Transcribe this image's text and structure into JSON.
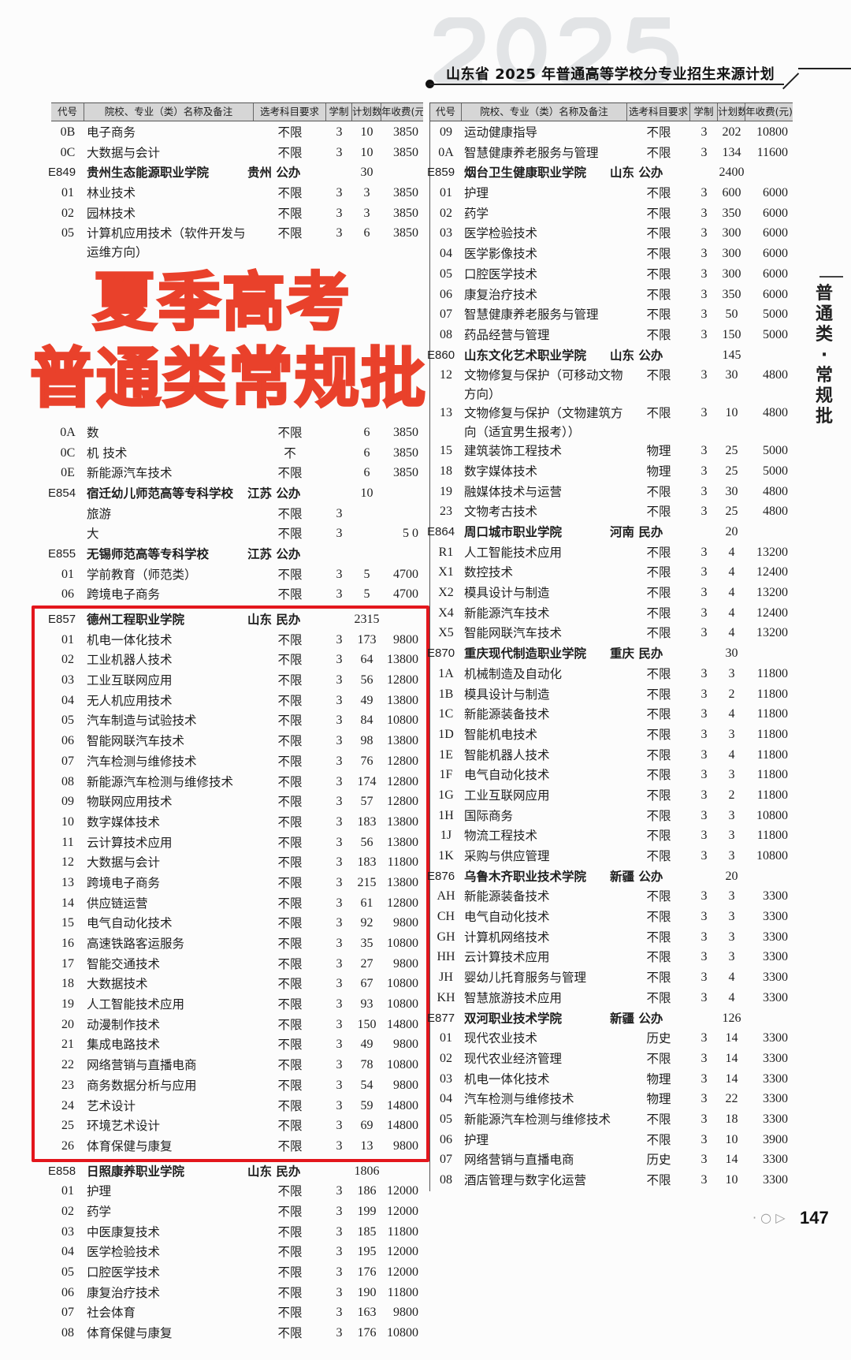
{
  "header": {
    "year_watermark": "2025",
    "title": "山东省 2025 年普通高等学校分专业招生来源计划"
  },
  "table_headers": [
    "代号",
    "院校、专业（类）名称及备注",
    "选考科目要求",
    "学制",
    "计划数",
    "年收费(元)"
  ],
  "left_column": [
    {
      "code": "0B",
      "name": "电子商务",
      "subject": "不限",
      "years": "3",
      "plan": "10",
      "fee": "3850"
    },
    {
      "code": "0C",
      "name": "大数据与会计",
      "subject": "不限",
      "years": "3",
      "plan": "10",
      "fee": "3850"
    },
    {
      "type": "school",
      "code": "E849",
      "name": "贵州生态能源职业学院",
      "region": "贵州  公办",
      "plan": "30"
    },
    {
      "code": "01",
      "name": "林业技术",
      "subject": "不限",
      "years": "3",
      "plan": "3",
      "fee": "3850"
    },
    {
      "code": "02",
      "name": "园林技术",
      "subject": "不限",
      "years": "3",
      "plan": "3",
      "fee": "3850"
    },
    {
      "code": "05",
      "name": "计算机应用技术（软件开发与运维方向）",
      "subject": "不限",
      "years": "3",
      "plan": "6",
      "fee": "3850"
    },
    {
      "code": "0A",
      "name": "数",
      "subject": "不限",
      "years": "",
      "plan": "6",
      "fee": "3850"
    },
    {
      "code": "0C",
      "name": "机    技术",
      "subject": "不",
      "years": "",
      "plan": "6",
      "fee": "3850"
    },
    {
      "code": "0E",
      "name": "新能源汽车技术",
      "subject": "不限",
      "years": "",
      "plan": "6",
      "fee": "3850"
    },
    {
      "type": "school",
      "code": "E854",
      "name": "宿迁幼儿师范高等专科学校",
      "region": "江苏  公办",
      "plan": "10"
    },
    {
      "code": "",
      "name": "旅游",
      "subject": "不限",
      "years": "3",
      "plan": "",
      "fee": ""
    },
    {
      "code": "",
      "name": "大",
      "subject": "不限",
      "years": "3",
      "plan": "",
      "fee": "5  0"
    },
    {
      "type": "school",
      "code": "E855",
      "name": "无锡师范高等专科学校",
      "region": "江苏  公办",
      "plan": ""
    },
    {
      "code": "01",
      "name": "学前教育（师范类）",
      "subject": "不限",
      "years": "3",
      "plan": "5",
      "fee": "4700"
    },
    {
      "code": "06",
      "name": "跨境电子商务",
      "subject": "不限",
      "years": "3",
      "plan": "5",
      "fee": "4700"
    },
    {
      "type": "school",
      "code": "E857",
      "name": "德州工程职业学院",
      "region": "山东  民办",
      "plan": "2315"
    },
    {
      "code": "01",
      "name": "机电一体化技术",
      "subject": "不限",
      "years": "3",
      "plan": "173",
      "fee": "9800"
    },
    {
      "code": "02",
      "name": "工业机器人技术",
      "subject": "不限",
      "years": "3",
      "plan": "64",
      "fee": "13800"
    },
    {
      "code": "03",
      "name": "工业互联网应用",
      "subject": "不限",
      "years": "3",
      "plan": "56",
      "fee": "12800"
    },
    {
      "code": "04",
      "name": "无人机应用技术",
      "subject": "不限",
      "years": "3",
      "plan": "49",
      "fee": "13800"
    },
    {
      "code": "05",
      "name": "汽车制造与试验技术",
      "subject": "不限",
      "years": "3",
      "plan": "84",
      "fee": "10800"
    },
    {
      "code": "06",
      "name": "智能网联汽车技术",
      "subject": "不限",
      "years": "3",
      "plan": "98",
      "fee": "13800"
    },
    {
      "code": "07",
      "name": "汽车检测与维修技术",
      "subject": "不限",
      "years": "3",
      "plan": "76",
      "fee": "12800"
    },
    {
      "code": "08",
      "name": "新能源汽车检测与维修技术",
      "subject": "不限",
      "years": "3",
      "plan": "174",
      "fee": "12800"
    },
    {
      "code": "09",
      "name": "物联网应用技术",
      "subject": "不限",
      "years": "3",
      "plan": "57",
      "fee": "12800"
    },
    {
      "code": "10",
      "name": "数字媒体技术",
      "subject": "不限",
      "years": "3",
      "plan": "183",
      "fee": "13800"
    },
    {
      "code": "11",
      "name": "云计算技术应用",
      "subject": "不限",
      "years": "3",
      "plan": "56",
      "fee": "13800"
    },
    {
      "code": "12",
      "name": "大数据与会计",
      "subject": "不限",
      "years": "3",
      "plan": "183",
      "fee": "11800"
    },
    {
      "code": "13",
      "name": "跨境电子商务",
      "subject": "不限",
      "years": "3",
      "plan": "215",
      "fee": "13800"
    },
    {
      "code": "14",
      "name": "供应链运营",
      "subject": "不限",
      "years": "3",
      "plan": "61",
      "fee": "12800"
    },
    {
      "code": "15",
      "name": "电气自动化技术",
      "subject": "不限",
      "years": "3",
      "plan": "92",
      "fee": "9800"
    },
    {
      "code": "16",
      "name": "高速铁路客运服务",
      "subject": "不限",
      "years": "3",
      "plan": "35",
      "fee": "10800"
    },
    {
      "code": "17",
      "name": "智能交通技术",
      "subject": "不限",
      "years": "3",
      "plan": "27",
      "fee": "9800"
    },
    {
      "code": "18",
      "name": "大数据技术",
      "subject": "不限",
      "years": "3",
      "plan": "67",
      "fee": "10800"
    },
    {
      "code": "19",
      "name": "人工智能技术应用",
      "subject": "不限",
      "years": "3",
      "plan": "93",
      "fee": "10800"
    },
    {
      "code": "20",
      "name": "动漫制作技术",
      "subject": "不限",
      "years": "3",
      "plan": "150",
      "fee": "14800"
    },
    {
      "code": "21",
      "name": "集成电路技术",
      "subject": "不限",
      "years": "3",
      "plan": "49",
      "fee": "9800"
    },
    {
      "code": "22",
      "name": "网络营销与直播电商",
      "subject": "不限",
      "years": "3",
      "plan": "78",
      "fee": "10800"
    },
    {
      "code": "23",
      "name": "商务数据分析与应用",
      "subject": "不限",
      "years": "3",
      "plan": "54",
      "fee": "9800"
    },
    {
      "code": "24",
      "name": "艺术设计",
      "subject": "不限",
      "years": "3",
      "plan": "59",
      "fee": "14800"
    },
    {
      "code": "25",
      "name": "环境艺术设计",
      "subject": "不限",
      "years": "3",
      "plan": "69",
      "fee": "14800"
    },
    {
      "code": "26",
      "name": "体育保健与康复",
      "subject": "不限",
      "years": "3",
      "plan": "13",
      "fee": "9800"
    },
    {
      "type": "school",
      "code": "E858",
      "name": "日照康养职业学院",
      "region": "山东  民办",
      "plan": "1806"
    },
    {
      "code": "01",
      "name": "护理",
      "subject": "不限",
      "years": "3",
      "plan": "186",
      "fee": "12000"
    },
    {
      "code": "02",
      "name": "药学",
      "subject": "不限",
      "years": "3",
      "plan": "199",
      "fee": "12000"
    },
    {
      "code": "03",
      "name": "中医康复技术",
      "subject": "不限",
      "years": "3",
      "plan": "185",
      "fee": "11800"
    },
    {
      "code": "04",
      "name": "医学检验技术",
      "subject": "不限",
      "years": "3",
      "plan": "195",
      "fee": "12000"
    },
    {
      "code": "05",
      "name": "口腔医学技术",
      "subject": "不限",
      "years": "3",
      "plan": "176",
      "fee": "12000"
    },
    {
      "code": "06",
      "name": "康复治疗技术",
      "subject": "不限",
      "years": "3",
      "plan": "190",
      "fee": "11800"
    },
    {
      "code": "07",
      "name": "社会体育",
      "subject": "不限",
      "years": "3",
      "plan": "163",
      "fee": "9800"
    },
    {
      "code": "08",
      "name": "体育保健与康复",
      "subject": "不限",
      "years": "3",
      "plan": "176",
      "fee": "10800"
    }
  ],
  "right_column": [
    {
      "code": "09",
      "name": "运动健康指导",
      "subject": "不限",
      "years": "3",
      "plan": "202",
      "fee": "10800"
    },
    {
      "code": "0A",
      "name": "智慧健康养老服务与管理",
      "subject": "不限",
      "years": "3",
      "plan": "134",
      "fee": "11600"
    },
    {
      "type": "school",
      "code": "E859",
      "name": "烟台卫生健康职业学院",
      "region": "山东  公办",
      "plan": "2400"
    },
    {
      "code": "01",
      "name": "护理",
      "subject": "不限",
      "years": "3",
      "plan": "600",
      "fee": "6000"
    },
    {
      "code": "02",
      "name": "药学",
      "subject": "不限",
      "years": "3",
      "plan": "350",
      "fee": "6000"
    },
    {
      "code": "03",
      "name": "医学检验技术",
      "subject": "不限",
      "years": "3",
      "plan": "300",
      "fee": "6000"
    },
    {
      "code": "04",
      "name": "医学影像技术",
      "subject": "不限",
      "years": "3",
      "plan": "300",
      "fee": "6000"
    },
    {
      "code": "05",
      "name": "口腔医学技术",
      "subject": "不限",
      "years": "3",
      "plan": "300",
      "fee": "6000"
    },
    {
      "code": "06",
      "name": "康复治疗技术",
      "subject": "不限",
      "years": "3",
      "plan": "350",
      "fee": "6000"
    },
    {
      "code": "07",
      "name": "智慧健康养老服务与管理",
      "subject": "不限",
      "years": "3",
      "plan": "50",
      "fee": "5000"
    },
    {
      "code": "08",
      "name": "药品经营与管理",
      "subject": "不限",
      "years": "3",
      "plan": "150",
      "fee": "5000"
    },
    {
      "type": "school",
      "code": "E860",
      "name": "山东文化艺术职业学院",
      "region": "山东  公办",
      "plan": "145"
    },
    {
      "code": "12",
      "name": "文物修复与保护（可移动文物方向）",
      "subject": "不限",
      "years": "3",
      "plan": "30",
      "fee": "4800"
    },
    {
      "code": "13",
      "name": "文物修复与保护（文物建筑方向（适宜男生报考））",
      "subject": "不限",
      "years": "3",
      "plan": "10",
      "fee": "4800"
    },
    {
      "code": "15",
      "name": "建筑装饰工程技术",
      "subject": "物理",
      "years": "3",
      "plan": "25",
      "fee": "5000"
    },
    {
      "code": "18",
      "name": "数字媒体技术",
      "subject": "物理",
      "years": "3",
      "plan": "25",
      "fee": "5000"
    },
    {
      "code": "19",
      "name": "融媒体技术与运营",
      "subject": "不限",
      "years": "3",
      "plan": "30",
      "fee": "4800"
    },
    {
      "code": "23",
      "name": "文物考古技术",
      "subject": "不限",
      "years": "3",
      "plan": "25",
      "fee": "4800"
    },
    {
      "type": "school",
      "code": "E864",
      "name": "周口城市职业学院",
      "region": "河南  民办",
      "plan": "20"
    },
    {
      "code": "R1",
      "name": "人工智能技术应用",
      "subject": "不限",
      "years": "3",
      "plan": "4",
      "fee": "13200"
    },
    {
      "code": "X1",
      "name": "数控技术",
      "subject": "不限",
      "years": "3",
      "plan": "4",
      "fee": "12400"
    },
    {
      "code": "X2",
      "name": "模具设计与制造",
      "subject": "不限",
      "years": "3",
      "plan": "4",
      "fee": "13200"
    },
    {
      "code": "X4",
      "name": "新能源汽车技术",
      "subject": "不限",
      "years": "3",
      "plan": "4",
      "fee": "12400"
    },
    {
      "code": "X5",
      "name": "智能网联汽车技术",
      "subject": "不限",
      "years": "3",
      "plan": "4",
      "fee": "13200"
    },
    {
      "type": "school",
      "code": "E870",
      "name": "重庆现代制造职业学院",
      "region": "重庆  民办",
      "plan": "30"
    },
    {
      "code": "1A",
      "name": "机械制造及自动化",
      "subject": "不限",
      "years": "3",
      "plan": "3",
      "fee": "11800"
    },
    {
      "code": "1B",
      "name": "模具设计与制造",
      "subject": "不限",
      "years": "3",
      "plan": "2",
      "fee": "11800"
    },
    {
      "code": "1C",
      "name": "新能源装备技术",
      "subject": "不限",
      "years": "3",
      "plan": "4",
      "fee": "11800"
    },
    {
      "code": "1D",
      "name": "智能机电技术",
      "subject": "不限",
      "years": "3",
      "plan": "3",
      "fee": "11800"
    },
    {
      "code": "1E",
      "name": "智能机器人技术",
      "subject": "不限",
      "years": "3",
      "plan": "4",
      "fee": "11800"
    },
    {
      "code": "1F",
      "name": "电气自动化技术",
      "subject": "不限",
      "years": "3",
      "plan": "3",
      "fee": "11800"
    },
    {
      "code": "1G",
      "name": "工业互联网应用",
      "subject": "不限",
      "years": "3",
      "plan": "2",
      "fee": "11800"
    },
    {
      "code": "1H",
      "name": "国际商务",
      "subject": "不限",
      "years": "3",
      "plan": "3",
      "fee": "10800"
    },
    {
      "code": "1J",
      "name": "物流工程技术",
      "subject": "不限",
      "years": "3",
      "plan": "3",
      "fee": "11800"
    },
    {
      "code": "1K",
      "name": "采购与供应管理",
      "subject": "不限",
      "years": "3",
      "plan": "3",
      "fee": "10800"
    },
    {
      "type": "school",
      "code": "E876",
      "name": "乌鲁木齐职业技术学院",
      "region": "新疆  公办",
      "plan": "20"
    },
    {
      "code": "AH",
      "name": "新能源装备技术",
      "subject": "不限",
      "years": "3",
      "plan": "3",
      "fee": "3300"
    },
    {
      "code": "CH",
      "name": "电气自动化技术",
      "subject": "不限",
      "years": "3",
      "plan": "3",
      "fee": "3300"
    },
    {
      "code": "GH",
      "name": "计算机网络技术",
      "subject": "不限",
      "years": "3",
      "plan": "3",
      "fee": "3300"
    },
    {
      "code": "HH",
      "name": "云计算技术应用",
      "subject": "不限",
      "years": "3",
      "plan": "3",
      "fee": "3300"
    },
    {
      "code": "JH",
      "name": "婴幼儿托育服务与管理",
      "subject": "不限",
      "years": "3",
      "plan": "4",
      "fee": "3300"
    },
    {
      "code": "KH",
      "name": "智慧旅游技术应用",
      "subject": "不限",
      "years": "3",
      "plan": "4",
      "fee": "3300"
    },
    {
      "type": "school",
      "code": "E877",
      "name": "双河职业技术学院",
      "region": "新疆  公办",
      "plan": "126"
    },
    {
      "code": "01",
      "name": "现代农业技术",
      "subject": "历史",
      "years": "3",
      "plan": "14",
      "fee": "3300"
    },
    {
      "code": "02",
      "name": "现代农业经济管理",
      "subject": "不限",
      "years": "3",
      "plan": "14",
      "fee": "3300"
    },
    {
      "code": "03",
      "name": "机电一体化技术",
      "subject": "物理",
      "years": "3",
      "plan": "14",
      "fee": "3300"
    },
    {
      "code": "04",
      "name": "汽车检测与维修技术",
      "subject": "物理",
      "years": "3",
      "plan": "22",
      "fee": "3300"
    },
    {
      "code": "05",
      "name": "新能源汽车检测与维修技术",
      "subject": "不限",
      "years": "3",
      "plan": "18",
      "fee": "3300"
    },
    {
      "code": "06",
      "name": "护理",
      "subject": "不限",
      "years": "3",
      "plan": "10",
      "fee": "3900"
    },
    {
      "code": "07",
      "name": "网络营销与直播电商",
      "subject": "历史",
      "years": "3",
      "plan": "14",
      "fee": "3300"
    },
    {
      "code": "08",
      "name": "酒店管理与数字化运营",
      "subject": "不限",
      "years": "3",
      "plan": "10",
      "fee": "3300"
    }
  ],
  "overlay": {
    "line1": "夏季高考",
    "line2": "普通类常规批",
    "color": "#e9412b",
    "highlight_box_color": "#e3161c"
  },
  "side_tab": "普通类·常规批",
  "page_number": "147"
}
